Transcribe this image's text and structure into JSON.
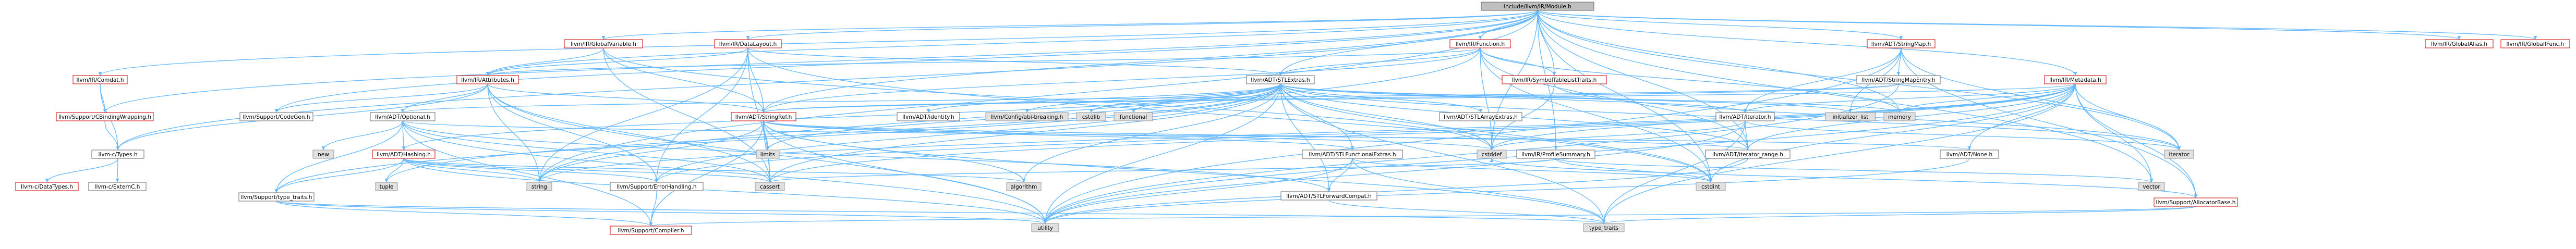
{
  "colors": {
    "root_fill": "#bfbfbf",
    "root_border": "#666666",
    "linked_fill": "#ffffff",
    "linked_border": "#cc0000",
    "plain_fill": "#ffffff",
    "plain_border": "#666666",
    "external_fill": "#e0e0e0",
    "external_border": "#999999",
    "edge": "#63b8ff"
  },
  "nodes": [
    {
      "id": "module",
      "label": "include/llvm/IR/Module.h",
      "kind": "root"
    },
    {
      "id": "comdat",
      "label": "llvm/IR/Comdat.h",
      "kind": "linked"
    },
    {
      "id": "globalvariable",
      "label": "llvm/IR/GlobalVariable.h",
      "kind": "linked"
    },
    {
      "id": "datalayout",
      "label": "llvm/IR/DataLayout.h",
      "kind": "linked"
    },
    {
      "id": "function",
      "label": "llvm/IR/Function.h",
      "kind": "linked"
    },
    {
      "id": "stringmap",
      "label": "llvm/ADT/StringMap.h",
      "kind": "linked"
    },
    {
      "id": "globalalias",
      "label": "llvm/IR/GlobalAlias.h",
      "kind": "linked"
    },
    {
      "id": "globalifunc",
      "label": "llvm/IR/GlobalIFunc.h",
      "kind": "linked"
    },
    {
      "id": "cbinding",
      "label": "llvm/Support/CBindingWrapping.h",
      "kind": "linked"
    },
    {
      "id": "attributes",
      "label": "llvm/IR/Attributes.h",
      "kind": "linked"
    },
    {
      "id": "stlextras",
      "label": "llvm/ADT/STLExtras.h",
      "kind": "plain"
    },
    {
      "id": "symtablelisttraits",
      "label": "llvm/IR/SymbolTableListTraits.h",
      "kind": "linked"
    },
    {
      "id": "stringmapentry",
      "label": "llvm/ADT/StringMapEntry.h",
      "kind": "plain"
    },
    {
      "id": "metadata",
      "label": "llvm/IR/Metadata.h",
      "kind": "linked"
    },
    {
      "id": "codegen",
      "label": "llvm/Support/CodeGen.h",
      "kind": "plain"
    },
    {
      "id": "optional",
      "label": "llvm/ADT/Optional.h",
      "kind": "plain"
    },
    {
      "id": "stringref",
      "label": "llvm/ADT/StringRef.h",
      "kind": "linked"
    },
    {
      "id": "identity",
      "label": "llvm/ADT/identity.h",
      "kind": "plain"
    },
    {
      "id": "configbreaking",
      "label": "llvm/Config/abi-breaking.h",
      "kind": "external"
    },
    {
      "id": "cstdlib",
      "label": "cstdlib",
      "kind": "external"
    },
    {
      "id": "functional",
      "label": "functional",
      "kind": "external"
    },
    {
      "id": "stlarrayextras",
      "label": "llvm/ADT/STLArrayExtras.h",
      "kind": "plain"
    },
    {
      "id": "initializerlist",
      "label": "initializer_list",
      "kind": "external"
    },
    {
      "id": "memory",
      "label": "memory",
      "kind": "external"
    },
    {
      "id": "iteratorh",
      "label": "llvm/ADT/iterator.h",
      "kind": "plain"
    },
    {
      "id": "ctypes",
      "label": "llvm-c/Types.h",
      "kind": "plain"
    },
    {
      "id": "newh",
      "label": "new",
      "kind": "external"
    },
    {
      "id": "hashing",
      "label": "llvm/ADT/Hashing.h",
      "kind": "linked"
    },
    {
      "id": "limits",
      "label": "limits",
      "kind": "external"
    },
    {
      "id": "cstddef",
      "label": "cstddef",
      "kind": "external"
    },
    {
      "id": "profilesummary",
      "label": "llvm/IR/ProfileSummary.h",
      "kind": "plain"
    },
    {
      "id": "iteratorrange",
      "label": "llvm/ADT/iterator_range.h",
      "kind": "plain"
    },
    {
      "id": "iteratorstd",
      "label": "iterator",
      "kind": "external"
    },
    {
      "id": "stlfunctional",
      "label": "llvm/ADT/STLFunctionalExtras.h",
      "kind": "plain"
    },
    {
      "id": "none",
      "label": "llvm/ADT/None.h",
      "kind": "plain"
    },
    {
      "id": "cdatatypes",
      "label": "llvm-c/DataTypes.h",
      "kind": "linked"
    },
    {
      "id": "cexternc",
      "label": "llvm-c/ExternC.h",
      "kind": "plain"
    },
    {
      "id": "tuple",
      "label": "tuple",
      "kind": "external"
    },
    {
      "id": "typetraits",
      "label": "llvm/Support/type_traits.h",
      "kind": "plain"
    },
    {
      "id": "string",
      "label": "string",
      "kind": "external"
    },
    {
      "id": "errorhandling",
      "label": "llvm/Support/ErrorHandling.h",
      "kind": "plain"
    },
    {
      "id": "cassert",
      "label": "cassert",
      "kind": "external"
    },
    {
      "id": "algorithm",
      "label": "algorithm",
      "kind": "external"
    },
    {
      "id": "stlforward",
      "label": "llvm/ADT/STLForwardCompat.h",
      "kind": "plain"
    },
    {
      "id": "cstdint",
      "label": "cstdint",
      "kind": "external"
    },
    {
      "id": "vector",
      "label": "vector",
      "kind": "external"
    },
    {
      "id": "allocatorbase",
      "label": "llvm/Support/AllocatorBase.h",
      "kind": "linked"
    },
    {
      "id": "compiler",
      "label": "llvm/Support/Compiler.h",
      "kind": "linked"
    },
    {
      "id": "utility",
      "label": "utility",
      "kind": "external"
    },
    {
      "id": "typetraitsstd",
      "label": "type_traits",
      "kind": "external"
    }
  ]
}
